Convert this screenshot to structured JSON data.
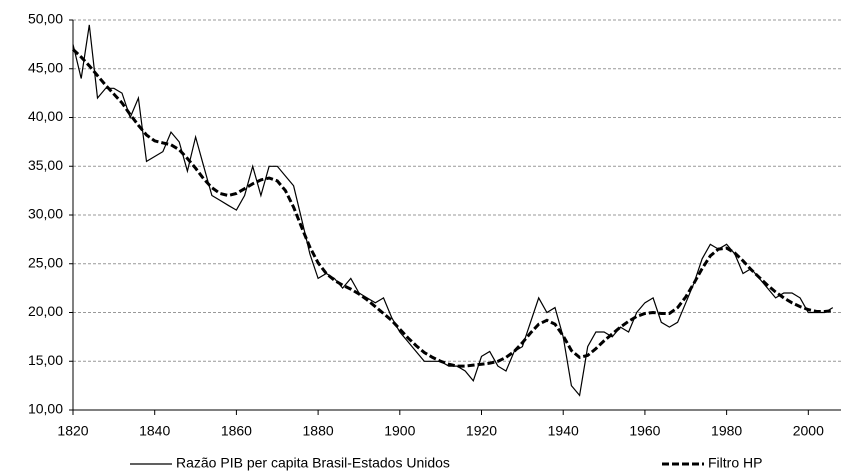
{
  "chart_data": {
    "type": "line",
    "x": [
      1820,
      1822,
      1824,
      1826,
      1828,
      1830,
      1832,
      1834,
      1836,
      1838,
      1840,
      1842,
      1844,
      1846,
      1848,
      1850,
      1852,
      1854,
      1856,
      1858,
      1860,
      1862,
      1864,
      1866,
      1868,
      1870,
      1872,
      1874,
      1876,
      1878,
      1880,
      1882,
      1884,
      1886,
      1888,
      1890,
      1892,
      1894,
      1896,
      1898,
      1900,
      1902,
      1904,
      1906,
      1908,
      1910,
      1912,
      1914,
      1916,
      1918,
      1920,
      1922,
      1924,
      1926,
      1928,
      1930,
      1932,
      1934,
      1936,
      1938,
      1940,
      1942,
      1944,
      1946,
      1948,
      1950,
      1952,
      1954,
      1956,
      1958,
      1960,
      1962,
      1964,
      1966,
      1968,
      1970,
      1972,
      1974,
      1976,
      1978,
      1980,
      1982,
      1984,
      1986,
      1988,
      1990,
      1992,
      1994,
      1996,
      1998,
      2000,
      2002,
      2004,
      2006
    ],
    "series": [
      {
        "name": "Razão PIB per capita Brasil-Estados Unidos",
        "color": "#000000",
        "dash": false,
        "values": [
          47.5,
          44,
          49.5,
          42,
          43,
          43,
          42.5,
          40,
          42,
          35.5,
          36,
          36.5,
          38.5,
          37.5,
          34.5,
          38,
          35,
          32,
          31.5,
          31,
          30.5,
          32,
          35,
          32,
          35,
          35,
          34,
          33,
          29.5,
          26,
          23.5,
          24,
          23.5,
          22.5,
          23.5,
          22,
          21.5,
          21,
          21.5,
          19.5,
          18,
          17,
          16,
          15,
          15,
          15,
          14.5,
          14.5,
          14,
          13,
          15.5,
          16,
          14.5,
          14,
          16,
          16.5,
          19,
          21.5,
          20,
          20.5,
          17.5,
          12.5,
          11.5,
          16.5,
          18,
          18,
          17.5,
          18.5,
          18,
          20,
          21,
          21.5,
          19,
          18.5,
          19,
          21,
          23,
          25.5,
          27,
          26.5,
          27,
          26,
          24,
          24.5,
          23.5,
          22.5,
          21.5,
          22,
          22,
          21.5,
          20,
          20,
          20,
          20.5
        ]
      },
      {
        "name": "Filtro HP",
        "color": "#000000",
        "dash": true,
        "values": [
          47,
          46.2,
          45.3,
          44.3,
          43.3,
          42.4,
          41.5,
          40.3,
          39.2,
          38.2,
          37.6,
          37.4,
          37.2,
          36.7,
          35.8,
          34.8,
          33.7,
          32.8,
          32.2,
          32,
          32.2,
          32.7,
          33.2,
          33.6,
          33.8,
          33.5,
          32.5,
          30.8,
          28.7,
          26.7,
          25.1,
          24,
          23.3,
          22.8,
          22.4,
          21.9,
          21.3,
          20.6,
          19.9,
          19.2,
          18.3,
          17.4,
          16.6,
          15.9,
          15.4,
          15,
          14.7,
          14.5,
          14.5,
          14.6,
          14.7,
          14.8,
          15,
          15.4,
          16,
          16.9,
          17.9,
          18.8,
          19.2,
          18.8,
          17.6,
          16.1,
          15.4,
          15.6,
          16.3,
          17.1,
          17.8,
          18.5,
          19.1,
          19.6,
          19.9,
          20,
          19.9,
          19.9,
          20.5,
          21.6,
          23,
          24.5,
          25.8,
          26.5,
          26.6,
          26.1,
          25.3,
          24.4,
          23.6,
          22.8,
          22.1,
          21.5,
          21,
          20.6,
          20.3,
          20.1,
          20.1,
          20.2
        ]
      }
    ],
    "xlim": [
      1820,
      2008
    ],
    "xticks": [
      1820,
      1840,
      1860,
      1880,
      1900,
      1920,
      1940,
      1960,
      1980,
      2000
    ],
    "ylim": [
      10,
      50
    ],
    "yticks": [
      {
        "value": 10,
        "label": "10,00"
      },
      {
        "value": 15,
        "label": "15,00"
      },
      {
        "value": 20,
        "label": "20,00"
      },
      {
        "value": 25,
        "label": "25,00"
      },
      {
        "value": 30,
        "label": "30,00"
      },
      {
        "value": 35,
        "label": "35,00"
      },
      {
        "value": 40,
        "label": "40,00"
      },
      {
        "value": 45,
        "label": "45,00"
      },
      {
        "value": 50,
        "label": "50,00"
      }
    ],
    "grid": true,
    "legend": "bottom"
  }
}
